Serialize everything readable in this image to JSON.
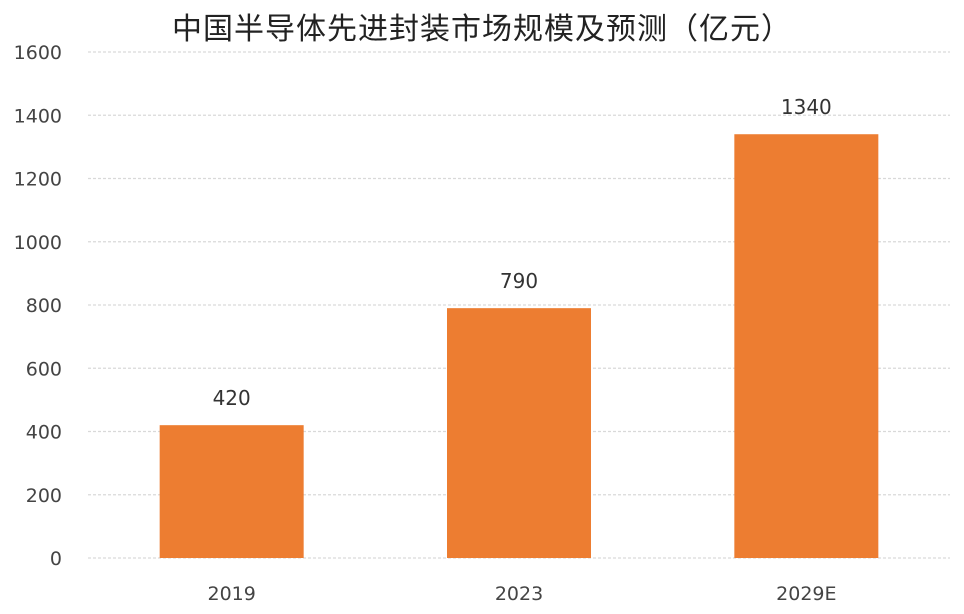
{
  "chart_data": {
    "type": "bar",
    "title": "中国半导体先进封装市场规模及预测（亿元）",
    "categories": [
      "2019",
      "2023",
      "2029E"
    ],
    "values": [
      420,
      790,
      1340
    ],
    "data_labels": [
      "420",
      "790",
      "1340"
    ],
    "ylim": [
      0,
      1600
    ],
    "yticks": [
      0,
      200,
      400,
      600,
      800,
      1000,
      1200,
      1400,
      1600
    ],
    "xlabel": "",
    "ylabel": "",
    "grid": true,
    "legend": "none",
    "bar_color": "#ED7D31",
    "grid_color": "#D9D9D9"
  }
}
